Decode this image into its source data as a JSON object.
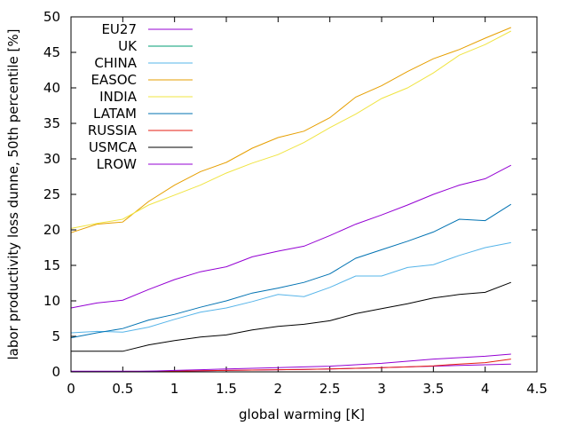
{
  "chart_data": {
    "type": "line",
    "xlabel": "global warming [K]",
    "ylabel": "labor productivity loss dunne, 50th percentile [%]",
    "xlim": [
      0,
      4.5
    ],
    "ylim": [
      0,
      50
    ],
    "xticks": [
      0,
      0.5,
      1,
      1.5,
      2,
      2.5,
      3,
      3.5,
      4,
      4.5
    ],
    "yticks": [
      0,
      5,
      10,
      15,
      20,
      25,
      30,
      35,
      40,
      45,
      50
    ],
    "grid": false,
    "legend_position": "top-left",
    "x": [
      0,
      0.25,
      0.5,
      0.75,
      1,
      1.25,
      1.5,
      1.75,
      2,
      2.25,
      2.5,
      2.75,
      3,
      3.25,
      3.5,
      3.75,
      4,
      4.25
    ],
    "series": [
      {
        "name": "EU27",
        "color": "#9400d3",
        "values": [
          0.1,
          0.1,
          0.1,
          0.1,
          0.1,
          0.15,
          0.2,
          0.25,
          0.3,
          0.35,
          0.4,
          0.5,
          0.6,
          0.7,
          0.8,
          0.9,
          1.0,
          1.1
        ]
      },
      {
        "name": "UK",
        "color": "#009e73",
        "values": [
          0.0,
          0.0,
          0.0,
          0.0,
          0.0,
          0.0,
          0.0,
          0.0,
          0.0,
          0.0,
          0.0,
          0.0,
          0.0,
          0.0,
          0.0,
          0.0,
          0.0,
          0.0
        ]
      },
      {
        "name": "CHINA",
        "color": "#56b4e9",
        "values": [
          5.5,
          5.7,
          5.6,
          6.3,
          7.4,
          8.4,
          9.0,
          9.9,
          10.9,
          10.6,
          11.9,
          13.5,
          13.5,
          14.7,
          15.1,
          16.4,
          17.5,
          18.2
        ]
      },
      {
        "name": "EASOC",
        "color": "#e69f00",
        "values": [
          19.6,
          20.8,
          21.1,
          24.0,
          26.3,
          28.2,
          29.5,
          31.5,
          33.0,
          33.9,
          35.8,
          38.7,
          40.3,
          42.3,
          44.1,
          45.4,
          47.0,
          48.5
        ]
      },
      {
        "name": "INDIA",
        "color": "#f0e442",
        "values": [
          20.2,
          20.9,
          21.5,
          23.5,
          24.9,
          26.3,
          28.0,
          29.4,
          30.6,
          32.3,
          34.4,
          36.3,
          38.5,
          40.0,
          42.1,
          44.6,
          46.1,
          48.0
        ]
      },
      {
        "name": "LATAM",
        "color": "#0072b2",
        "values": [
          4.8,
          5.5,
          6.1,
          7.3,
          8.1,
          9.1,
          10.0,
          11.1,
          11.8,
          12.6,
          13.8,
          16.0,
          17.2,
          18.4,
          19.7,
          21.5,
          21.3,
          23.6
        ]
      },
      {
        "name": "RUSSIA",
        "color": "#e51e10",
        "values": [
          0.0,
          0.0,
          0.0,
          0.05,
          0.1,
          0.15,
          0.2,
          0.25,
          0.3,
          0.35,
          0.4,
          0.5,
          0.6,
          0.7,
          0.85,
          1.1,
          1.3,
          1.8
        ]
      },
      {
        "name": "USMCA",
        "color": "#000000",
        "values": [
          2.9,
          2.9,
          2.9,
          3.8,
          4.4,
          4.9,
          5.2,
          5.9,
          6.4,
          6.7,
          7.2,
          8.2,
          8.9,
          9.6,
          10.4,
          10.9,
          11.2,
          12.6
        ]
      },
      {
        "name": "LROW",
        "color": "#9400d3",
        "values": [
          9.0,
          9.7,
          10.1,
          11.6,
          13.0,
          14.1,
          14.8,
          16.2,
          17.0,
          17.7,
          19.2,
          20.8,
          22.1,
          23.5,
          25.0,
          26.3,
          27.2,
          29.1
        ]
      },
      {
        "name": "",
        "color": "#9400d3",
        "values": [
          0.0,
          0.0,
          0.0,
          0.1,
          0.2,
          0.3,
          0.4,
          0.5,
          0.6,
          0.7,
          0.8,
          1.0,
          1.2,
          1.5,
          1.8,
          2.0,
          2.2,
          2.5
        ]
      }
    ]
  }
}
